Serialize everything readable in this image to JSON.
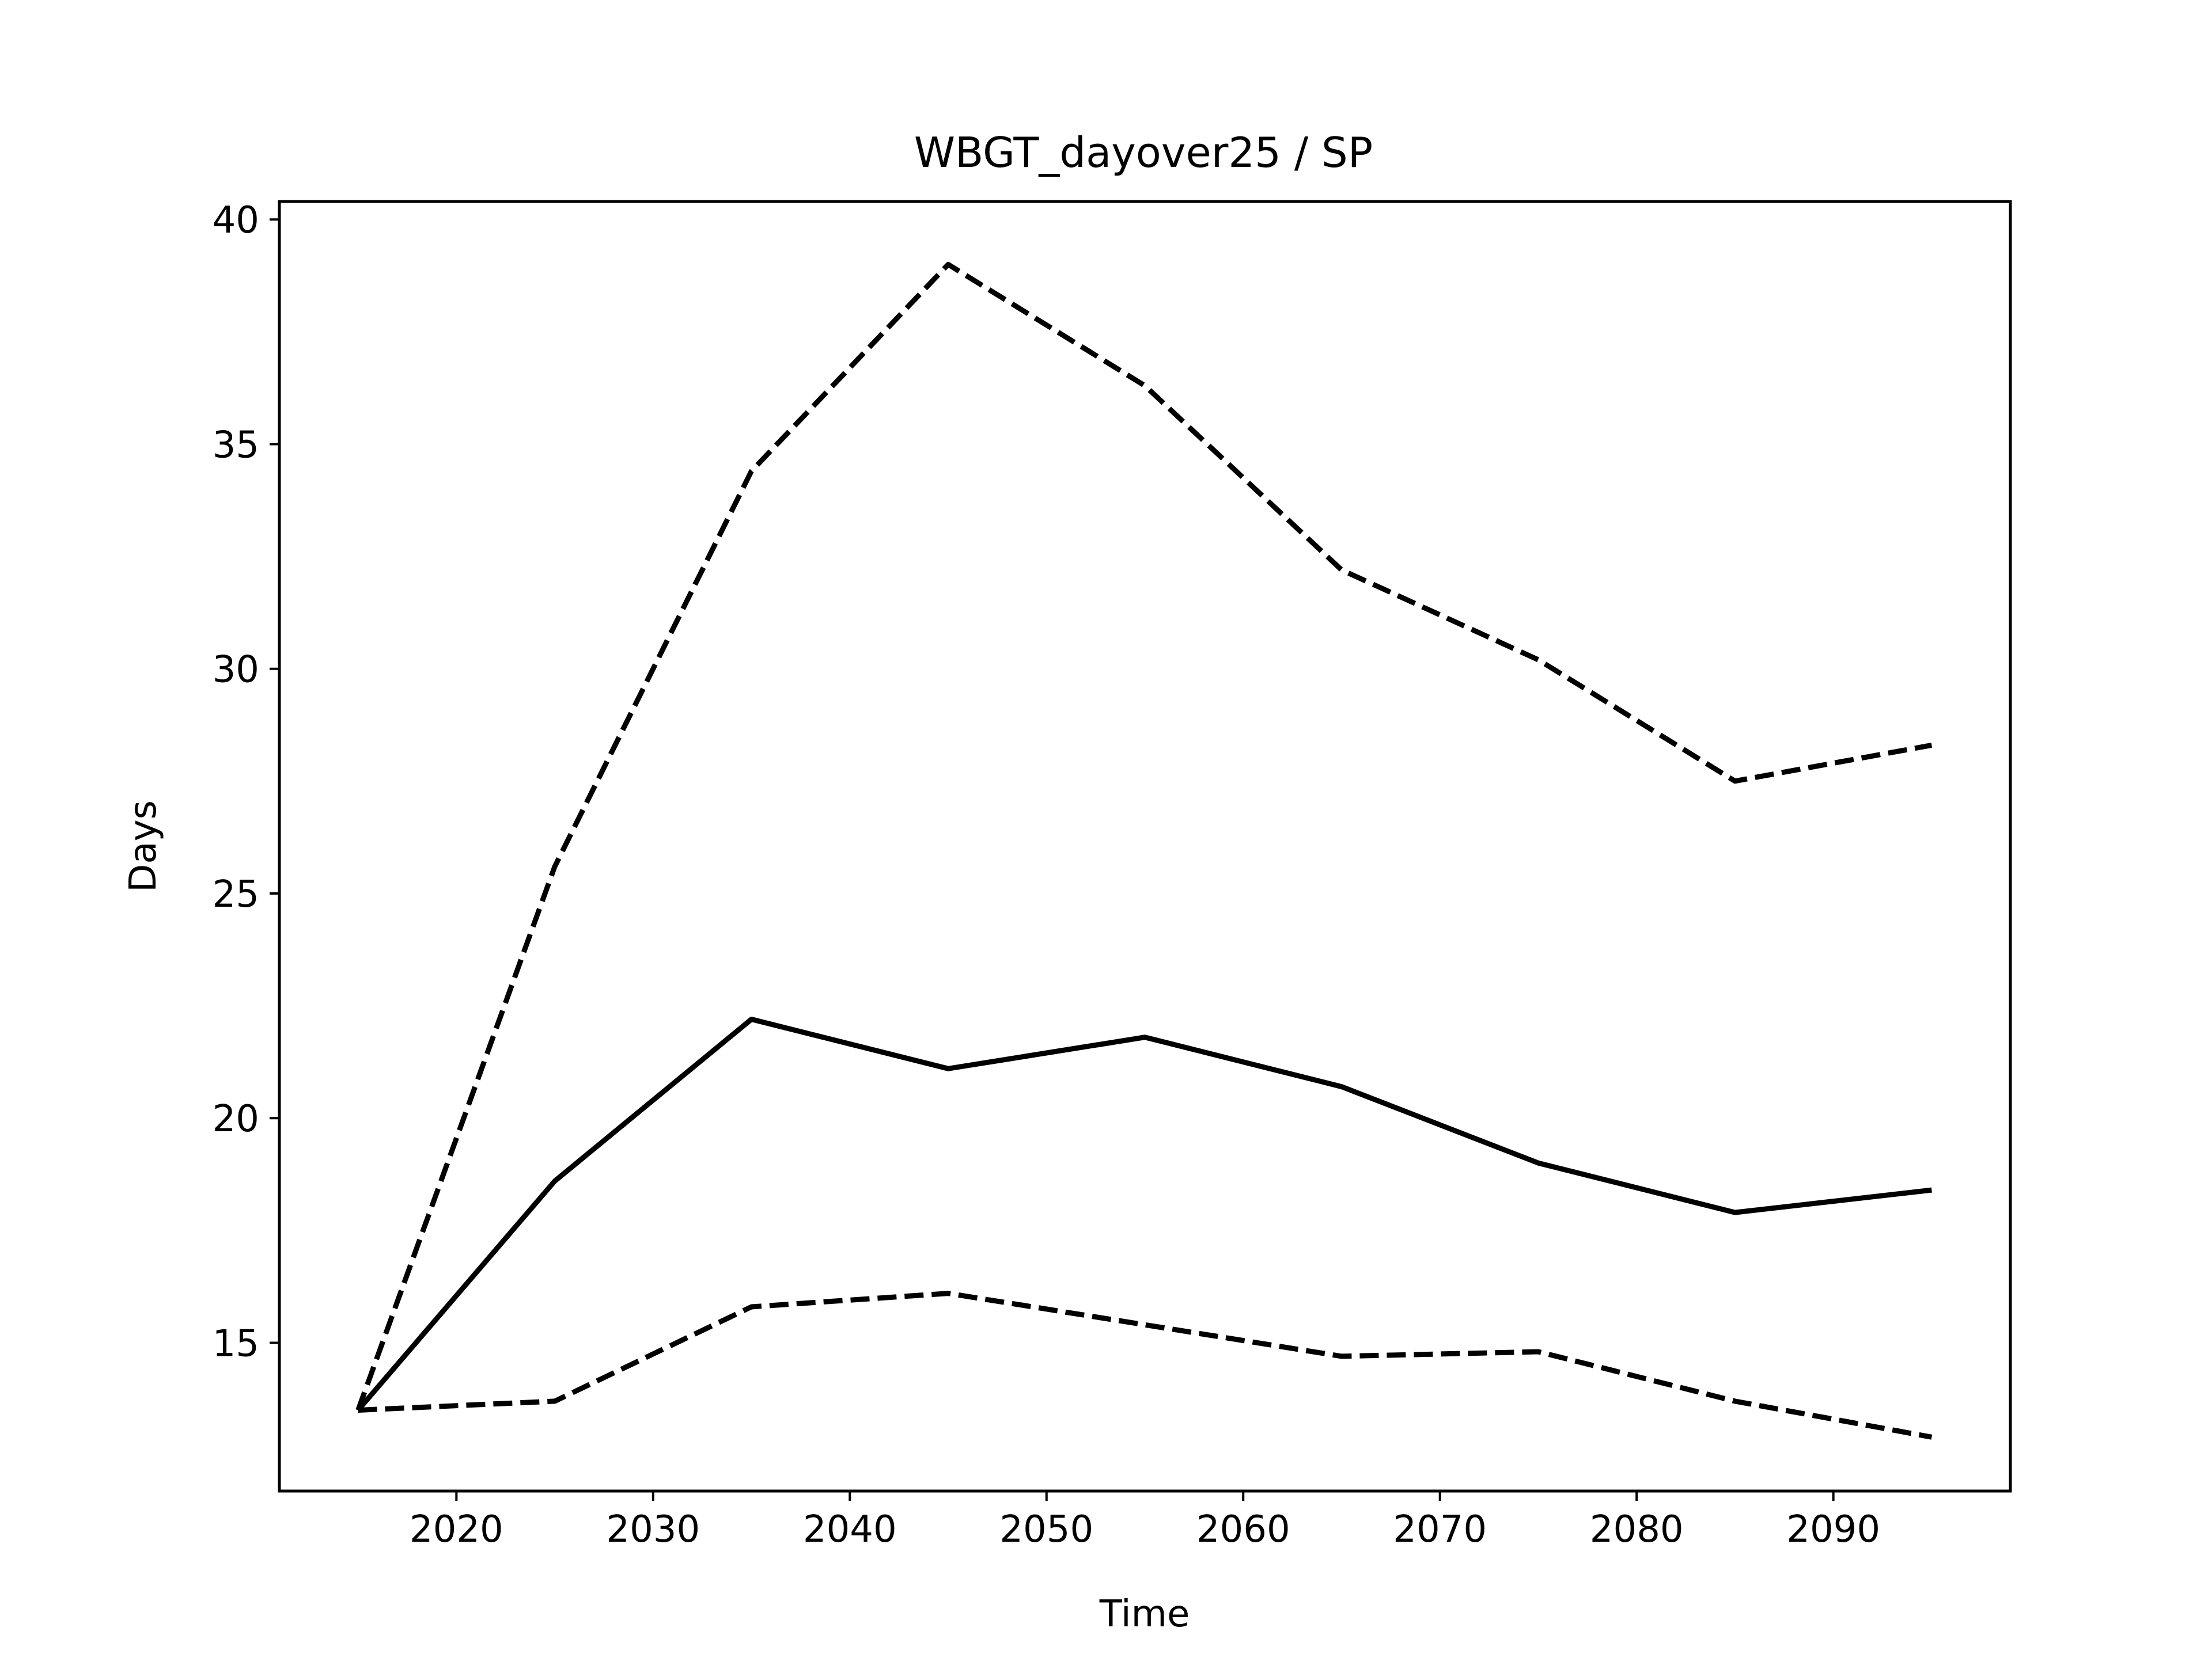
{
  "chart_data": {
    "type": "line",
    "title": "WBGT_dayover25 / SP",
    "xlabel": "Time",
    "ylabel": "Days",
    "xlim": [
      2011,
      2099
    ],
    "ylim": [
      11.7,
      40.4
    ],
    "xticks": [
      2020,
      2030,
      2040,
      2050,
      2060,
      2070,
      2080,
      2090
    ],
    "yticks": [
      15,
      20,
      25,
      30,
      35,
      40
    ],
    "grid": false,
    "legend": "none",
    "x": [
      2015,
      2025,
      2035,
      2045,
      2055,
      2065,
      2075,
      2085,
      2095
    ],
    "series": [
      {
        "style": "solid",
        "color": "#000000",
        "values": [
          13.5,
          18.6,
          22.2,
          21.1,
          21.8,
          20.7,
          19.0,
          17.9,
          18.4
        ]
      },
      {
        "style": "dashed",
        "color": "#000000",
        "values": [
          13.5,
          25.6,
          34.4,
          39.0,
          36.3,
          32.2,
          30.2,
          27.5,
          28.3
        ]
      },
      {
        "style": "dashed",
        "color": "#000000",
        "values": [
          13.5,
          13.7,
          15.8,
          16.1,
          15.4,
          14.7,
          14.8,
          13.7,
          12.9
        ]
      }
    ]
  }
}
